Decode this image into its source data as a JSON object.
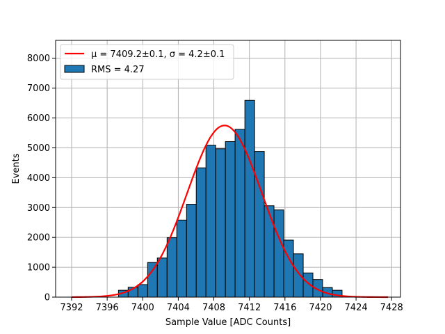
{
  "chart_data": {
    "type": "bar",
    "subtype": "histogram with gaussian fit",
    "xlabel": "Sample Value [ADC Counts]",
    "ylabel": "Events",
    "xlim": [
      7390.2,
      7429.0
    ],
    "ylim": [
      0,
      8600
    ],
    "xticks": [
      7392,
      7396,
      7400,
      7404,
      7408,
      7412,
      7416,
      7420,
      7424,
      7428
    ],
    "yticks": [
      0,
      1000,
      2000,
      3000,
      4000,
      5000,
      6000,
      7000,
      8000
    ],
    "grid": true,
    "legend_position": "top-left",
    "bin_width": 1.094,
    "bins": {
      "left_edges": [
        7397.27,
        7398.36,
        7399.46,
        7400.55,
        7401.64,
        7402.74,
        7403.83,
        7404.93,
        7406.02,
        7407.11,
        7408.21,
        7409.3,
        7410.39,
        7411.49,
        7412.58,
        7413.67,
        7414.77,
        7415.86,
        7416.96,
        7418.05,
        7419.14,
        7420.24,
        7421.33
      ],
      "counts": [
        230,
        330,
        420,
        1160,
        1310,
        1990,
        2580,
        3110,
        4330,
        5090,
        4970,
        5210,
        5620,
        6590,
        4880,
        3060,
        2920,
        1910,
        1450,
        810,
        590,
        320,
        230
      ]
    },
    "fit": {
      "mu": 7409.2,
      "sigma": 4.2,
      "amplitude": 5750,
      "x_range": [
        7392,
        7427.6
      ]
    },
    "colors": {
      "bars": "#1f77b4",
      "bar_edge": "#000000",
      "fit_line": "#ff0000",
      "grid": "#b0b0b0"
    },
    "legend": [
      {
        "label": "μ = 7409.2±0.1, σ = 4.2±0.1",
        "kind": "line"
      },
      {
        "label": "RMS = 4.27",
        "kind": "patch"
      }
    ]
  }
}
